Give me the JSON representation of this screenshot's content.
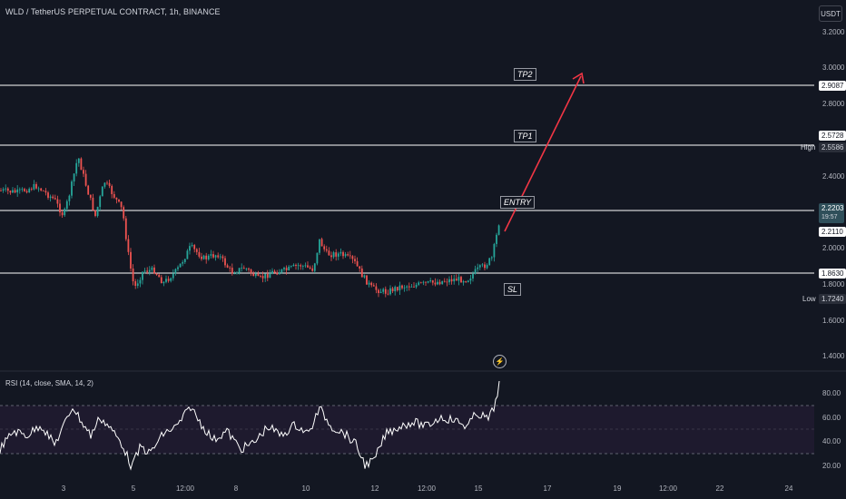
{
  "header": {
    "title": "WLD / TetherUS PERPETUAL CONTRACT, 1h, BINANCE"
  },
  "toolbar": {
    "currency": "USDT"
  },
  "price_axis": {
    "ticks": [
      "3.2000",
      "3.0000",
      "2.8000",
      "2.4000",
      "2.0000",
      "1.8000",
      "1.6000",
      "1.4000"
    ],
    "labels": {
      "tp2": "2.9087",
      "tp1": "2.5728",
      "high_tag": "High",
      "high": "2.5586",
      "current_price": "2.2203",
      "countdown": "19:57",
      "entry": "2.2110",
      "sl": "1.8630",
      "low_tag": "Low",
      "low": "1.7240"
    }
  },
  "levels": {
    "tp2_label": "TP2",
    "tp1_label": "TP1",
    "entry_label": "ENTRY",
    "sl_label": "SL"
  },
  "rsi": {
    "title": "RSI (14, close, SMA, 14, 2)",
    "ticks": [
      "80.00",
      "60.00",
      "40.00",
      "20.00"
    ]
  },
  "time_axis": {
    "ticks": [
      "3",
      "5",
      "12:00",
      "8",
      "10",
      "12",
      "12:00",
      "15",
      "17",
      "19",
      "12:00",
      "22",
      "24"
    ]
  },
  "icons": {
    "alert": "lightning-icon"
  },
  "colors": {
    "background": "#131722",
    "up": "#26a69a",
    "down": "#ef5350",
    "arrow": "#f23645",
    "rsi_band": "#1e1a2e"
  }
}
